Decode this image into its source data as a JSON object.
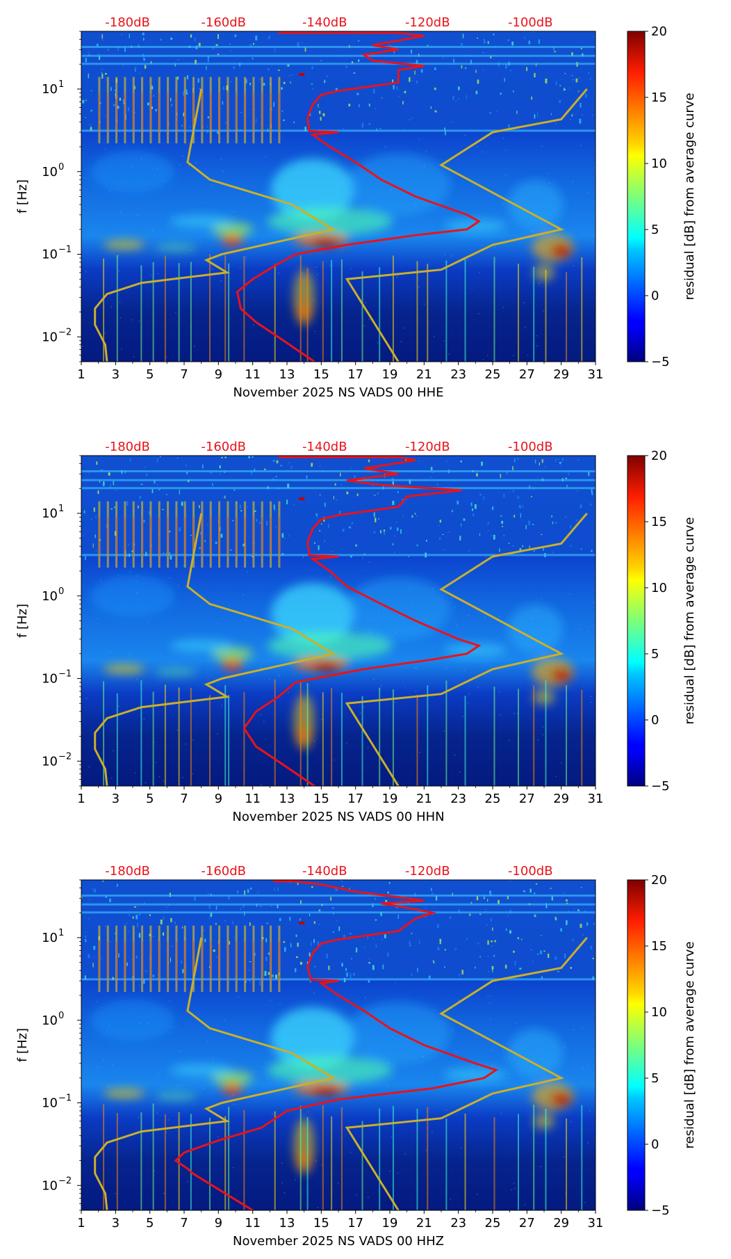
{
  "chart_data": [
    {
      "type": "heatmap",
      "xlabel": "November 2025 NS VADS 00 HHE",
      "ylabel": "f [Hz]",
      "colorbar_label": "residual [dB] from average curve",
      "xlim": [
        1,
        31
      ],
      "x_ticks": [
        1,
        3,
        5,
        7,
        9,
        11,
        13,
        15,
        17,
        19,
        21,
        23,
        25,
        27,
        29,
        31
      ],
      "ylim_hz": [
        0.005,
        50
      ],
      "y_ticks": [
        {
          "value": 0.01,
          "base": "10",
          "exp": "−2"
        },
        {
          "value": 0.1,
          "base": "10",
          "exp": "−1"
        },
        {
          "value": 1,
          "base": "10",
          "exp": "0"
        },
        {
          "value": 10,
          "base": "10",
          "exp": "1"
        }
      ],
      "colorbar_range": [
        -5,
        20
      ],
      "colorbar_ticks": [
        "−5",
        "0",
        "5",
        "10",
        "15",
        "20"
      ],
      "top_labels": [
        "-180dB",
        "-160dB",
        "-140dB",
        "-120dB",
        "-100dB"
      ],
      "median_psd_curve": [
        [
          14.6,
          0.005
        ],
        [
          12.8,
          0.009
        ],
        [
          11.2,
          0.015
        ],
        [
          10.3,
          0.022
        ],
        [
          10.1,
          0.035
        ],
        [
          11.0,
          0.05
        ],
        [
          12.4,
          0.075
        ],
        [
          13.5,
          0.1
        ],
        [
          16.5,
          0.13
        ],
        [
          20.5,
          0.17
        ],
        [
          23.5,
          0.2
        ],
        [
          24.2,
          0.25
        ],
        [
          23.5,
          0.3
        ],
        [
          20.5,
          0.5
        ],
        [
          18.5,
          0.8
        ],
        [
          17,
          1.3
        ],
        [
          15.5,
          2.0
        ],
        [
          14.5,
          2.8
        ],
        [
          16,
          3.0
        ],
        [
          14.3,
          3.1
        ],
        [
          14.2,
          4.5
        ],
        [
          14.5,
          6.5
        ],
        [
          15.0,
          8.5
        ],
        [
          16.0,
          9.5
        ],
        [
          19.5,
          12
        ],
        [
          19.5,
          17
        ],
        [
          21.0,
          19
        ],
        [
          18.0,
          22
        ],
        [
          17.5,
          26
        ],
        [
          19.5,
          30
        ],
        [
          18.0,
          34
        ],
        [
          21.0,
          44
        ],
        [
          19.5,
          48
        ],
        [
          12.5,
          48
        ]
      ],
      "noise_model_low": [
        [
          2.5,
          0.005
        ],
        [
          2.4,
          0.008
        ],
        [
          1.8,
          0.014
        ],
        [
          1.8,
          0.022
        ],
        [
          2.5,
          0.033
        ],
        [
          4.5,
          0.045
        ],
        [
          9.5,
          0.06
        ],
        [
          8.3,
          0.085
        ],
        [
          9.2,
          0.1
        ],
        [
          15.7,
          0.2
        ],
        [
          13.3,
          0.4
        ],
        [
          8.5,
          0.8
        ],
        [
          7.2,
          1.3
        ],
        [
          8.0,
          10
        ]
      ],
      "noise_model_high": [
        [
          19.5,
          0.005
        ],
        [
          16.5,
          0.05
        ],
        [
          22.0,
          0.065
        ],
        [
          25.0,
          0.13
        ],
        [
          29.0,
          0.2
        ],
        [
          22.0,
          1.2
        ],
        [
          25.0,
          3.0
        ],
        [
          29.0,
          4.3
        ],
        [
          30.5,
          10
        ]
      ]
    },
    {
      "type": "heatmap",
      "xlabel": "November 2025 NS VADS 00 HHN",
      "ylabel": "f [Hz]",
      "colorbar_label": "residual [dB] from average curve",
      "xlim": [
        1,
        31
      ],
      "x_ticks": [
        1,
        3,
        5,
        7,
        9,
        11,
        13,
        15,
        17,
        19,
        21,
        23,
        25,
        27,
        29,
        31
      ],
      "ylim_hz": [
        0.005,
        50
      ],
      "y_ticks": [
        {
          "value": 0.01,
          "base": "10",
          "exp": "−2"
        },
        {
          "value": 0.1,
          "base": "10",
          "exp": "−1"
        },
        {
          "value": 1,
          "base": "10",
          "exp": "0"
        },
        {
          "value": 10,
          "base": "10",
          "exp": "1"
        }
      ],
      "colorbar_range": [
        -5,
        20
      ],
      "colorbar_ticks": [
        "−5",
        "0",
        "5",
        "10",
        "15",
        "20"
      ],
      "top_labels": [
        "-180dB",
        "-160dB",
        "-140dB",
        "-120dB",
        "-100dB"
      ],
      "median_psd_curve": [
        [
          14.6,
          0.005
        ],
        [
          12.8,
          0.009
        ],
        [
          11.2,
          0.015
        ],
        [
          10.5,
          0.025
        ],
        [
          11.2,
          0.04
        ],
        [
          12.5,
          0.06
        ],
        [
          13.5,
          0.09
        ],
        [
          17.5,
          0.13
        ],
        [
          21.5,
          0.17
        ],
        [
          23.5,
          0.2
        ],
        [
          24.2,
          0.25
        ],
        [
          23.0,
          0.3
        ],
        [
          20.5,
          0.5
        ],
        [
          18.5,
          0.8
        ],
        [
          16.5,
          1.3
        ],
        [
          15.5,
          2.0
        ],
        [
          14.5,
          2.8
        ],
        [
          16.0,
          3.0
        ],
        [
          14.3,
          3.1
        ],
        [
          14.2,
          4.5
        ],
        [
          14.5,
          6.5
        ],
        [
          15.0,
          8.5
        ],
        [
          16.0,
          9.5
        ],
        [
          19.5,
          12
        ],
        [
          20.0,
          16
        ],
        [
          23.2,
          19
        ],
        [
          18.5,
          22
        ],
        [
          16.5,
          25
        ],
        [
          19.5,
          30
        ],
        [
          17.5,
          35
        ],
        [
          20.5,
          44
        ],
        [
          19.5,
          48
        ],
        [
          12.5,
          48
        ]
      ],
      "noise_model_low": [
        [
          2.5,
          0.005
        ],
        [
          2.4,
          0.008
        ],
        [
          1.8,
          0.014
        ],
        [
          1.8,
          0.022
        ],
        [
          2.5,
          0.033
        ],
        [
          4.5,
          0.045
        ],
        [
          9.5,
          0.06
        ],
        [
          8.3,
          0.085
        ],
        [
          9.2,
          0.1
        ],
        [
          15.7,
          0.2
        ],
        [
          13.3,
          0.4
        ],
        [
          8.5,
          0.8
        ],
        [
          7.2,
          1.3
        ],
        [
          8.0,
          10
        ]
      ],
      "noise_model_high": [
        [
          19.5,
          0.005
        ],
        [
          16.5,
          0.05
        ],
        [
          22.0,
          0.065
        ],
        [
          25.0,
          0.13
        ],
        [
          29.0,
          0.2
        ],
        [
          22.0,
          1.2
        ],
        [
          25.0,
          3.0
        ],
        [
          29.0,
          4.3
        ],
        [
          30.5,
          10
        ]
      ]
    },
    {
      "type": "heatmap",
      "xlabel": "November 2025 NS VADS 00 HHZ",
      "ylabel": "f [Hz]",
      "colorbar_label": "residual [dB] from average curve",
      "xlim": [
        1,
        31
      ],
      "x_ticks": [
        1,
        3,
        5,
        7,
        9,
        11,
        13,
        15,
        17,
        19,
        21,
        23,
        25,
        27,
        29,
        31
      ],
      "ylim_hz": [
        0.005,
        50
      ],
      "y_ticks": [
        {
          "value": 0.01,
          "base": "10",
          "exp": "−2"
        },
        {
          "value": 0.1,
          "base": "10",
          "exp": "−1"
        },
        {
          "value": 1,
          "base": "10",
          "exp": "0"
        },
        {
          "value": 10,
          "base": "10",
          "exp": "1"
        }
      ],
      "colorbar_range": [
        -5,
        20
      ],
      "colorbar_ticks": [
        "−5",
        "0",
        "5",
        "10",
        "15",
        "20"
      ],
      "top_labels": [
        "-180dB",
        "-160dB",
        "-140dB",
        "-120dB",
        "-100dB"
      ],
      "median_psd_curve": [
        [
          11.0,
          0.005
        ],
        [
          9.0,
          0.009
        ],
        [
          7.5,
          0.014
        ],
        [
          7.2,
          0.016
        ],
        [
          6.5,
          0.02
        ],
        [
          7.0,
          0.025
        ],
        [
          9.0,
          0.035
        ],
        [
          11.5,
          0.05
        ],
        [
          13.0,
          0.08
        ],
        [
          16.0,
          0.11
        ],
        [
          21.5,
          0.15
        ],
        [
          24.5,
          0.2
        ],
        [
          25.2,
          0.25
        ],
        [
          24.0,
          0.3
        ],
        [
          21.0,
          0.5
        ],
        [
          19.0,
          0.8
        ],
        [
          17.5,
          1.3
        ],
        [
          16.0,
          2.0
        ],
        [
          15.0,
          2.8
        ],
        [
          16.0,
          3.0
        ],
        [
          14.4,
          3.1
        ],
        [
          14.2,
          4.5
        ],
        [
          14.5,
          6.5
        ],
        [
          15.0,
          8.5
        ],
        [
          16.0,
          9.5
        ],
        [
          19.5,
          12
        ],
        [
          20.5,
          17
        ],
        [
          21.5,
          20
        ],
        [
          20.5,
          22
        ],
        [
          18.5,
          26
        ],
        [
          21.0,
          28
        ],
        [
          20.0,
          30
        ],
        [
          17.0,
          36
        ],
        [
          15.0,
          44
        ],
        [
          13.5,
          48
        ],
        [
          12.2,
          48
        ]
      ],
      "noise_model_low": [
        [
          2.5,
          0.005
        ],
        [
          2.4,
          0.008
        ],
        [
          1.8,
          0.014
        ],
        [
          1.8,
          0.022
        ],
        [
          2.5,
          0.033
        ],
        [
          4.5,
          0.045
        ],
        [
          9.5,
          0.06
        ],
        [
          8.3,
          0.085
        ],
        [
          9.2,
          0.1
        ],
        [
          15.7,
          0.2
        ],
        [
          13.3,
          0.4
        ],
        [
          8.5,
          0.8
        ],
        [
          7.2,
          1.3
        ],
        [
          8.0,
          10
        ]
      ],
      "noise_model_high": [
        [
          19.5,
          0.005
        ],
        [
          16.5,
          0.05
        ],
        [
          22.0,
          0.065
        ],
        [
          25.0,
          0.13
        ],
        [
          29.0,
          0.2
        ],
        [
          22.0,
          1.2
        ],
        [
          25.0,
          3.0
        ],
        [
          29.0,
          4.3
        ],
        [
          30.5,
          10
        ]
      ]
    }
  ],
  "colors": {
    "median_curve": "#e8131b",
    "noise_model": "#c9b02c",
    "top_label": "#e8131b"
  }
}
